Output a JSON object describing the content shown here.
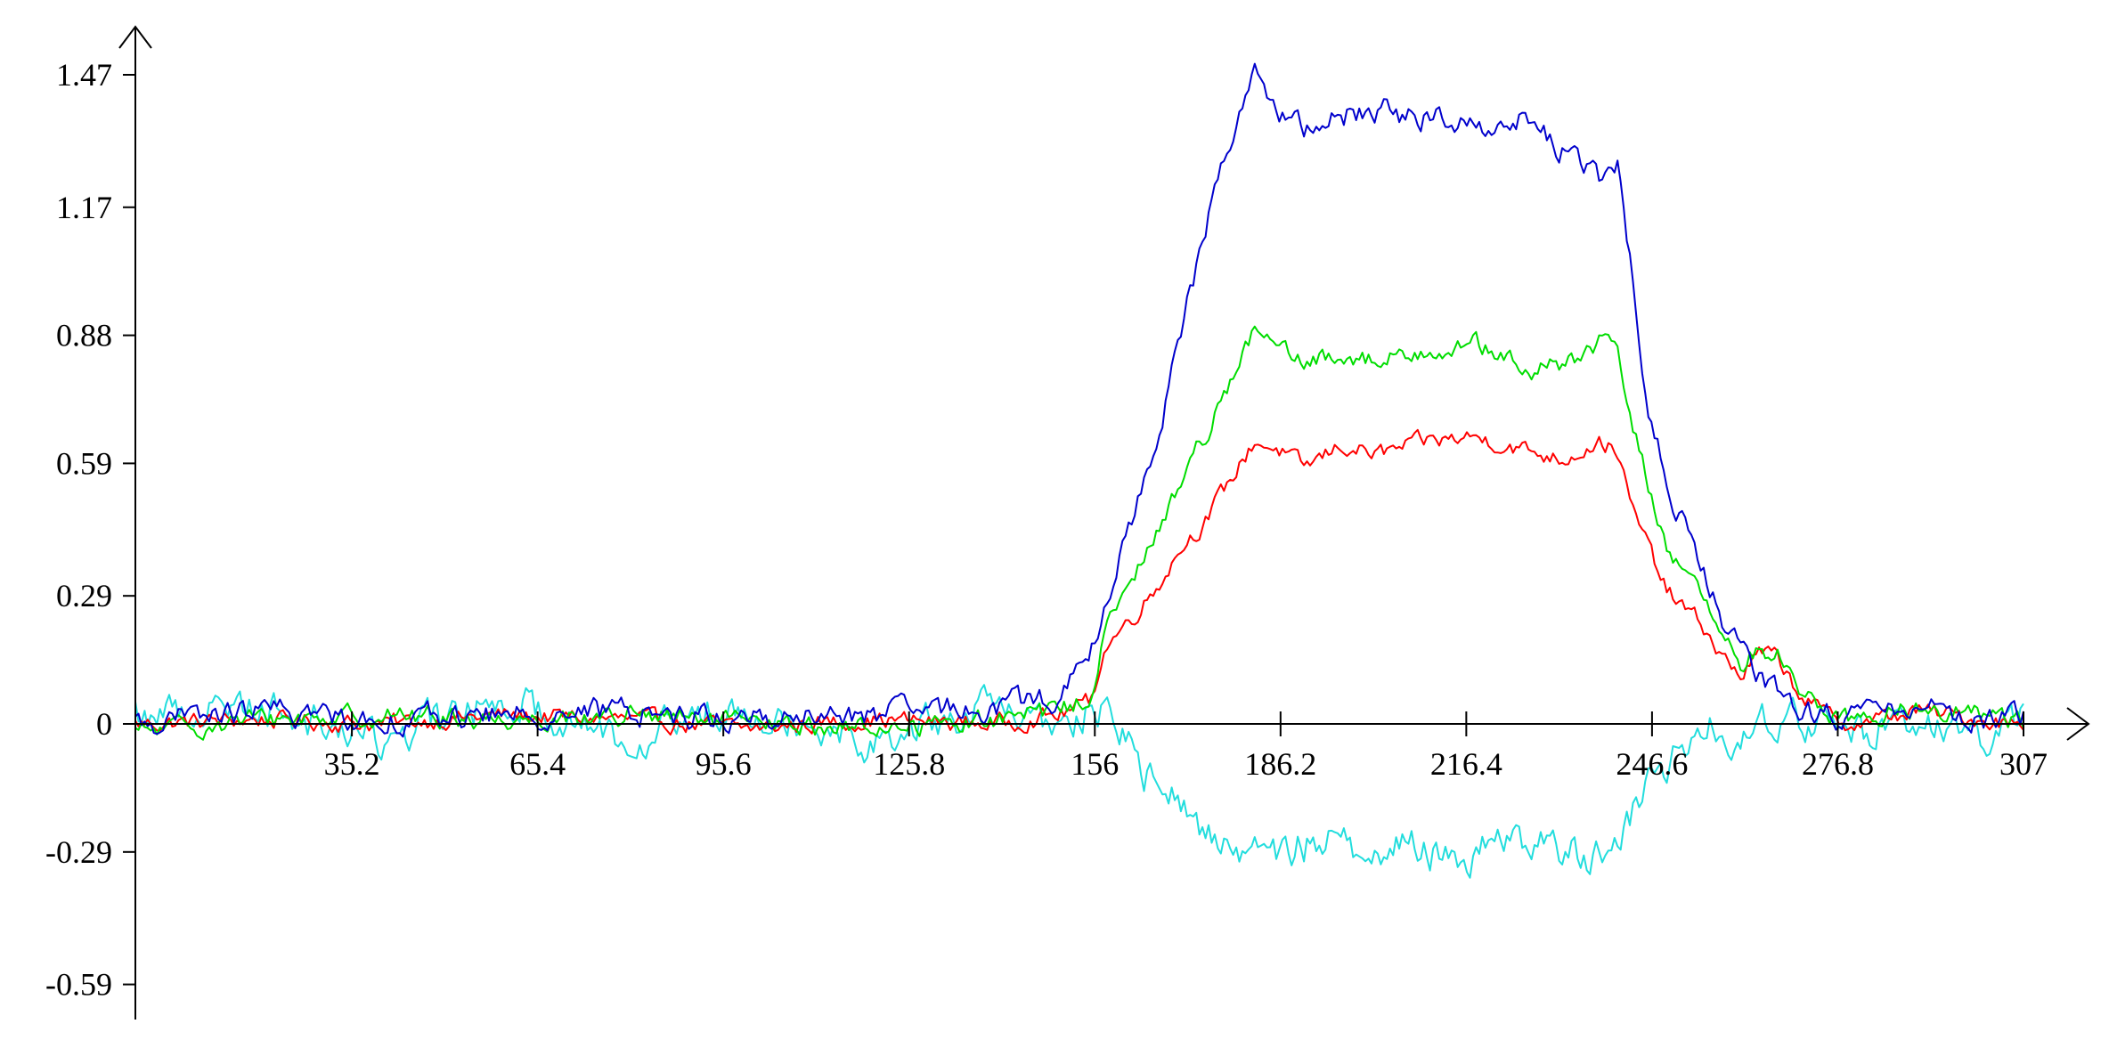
{
  "chart_data": {
    "type": "line",
    "title": "",
    "xlabel": "",
    "ylabel": "",
    "xlim": [
      0,
      307
    ],
    "ylim": [
      -0.64,
      1.52
    ],
    "x_ticks": [
      35.2,
      65.4,
      95.6,
      125.8,
      156,
      186.2,
      216.4,
      246.6,
      276.8,
      307
    ],
    "x_tick_labels": [
      "35.2",
      "65.4",
      "95.6",
      "125.8",
      "156",
      "186.2",
      "216.4",
      "246.6",
      "276.8",
      "307"
    ],
    "y_ticks": [
      1.47,
      1.17,
      0.88,
      0.59,
      0.29,
      0,
      -0.29,
      -0.59
    ],
    "y_tick_labels": [
      "1.47",
      "1.17",
      "0.88",
      "0.59",
      "0.29",
      "0",
      "-0.29",
      "-0.59"
    ],
    "grid": false,
    "legend": "none",
    "series": [
      {
        "color": "#ff0000",
        "x": [
          0,
          20,
          40,
          60,
          80,
          100,
          120,
          140,
          150,
          155,
          158,
          162,
          166,
          170,
          174,
          178,
          182,
          186,
          190,
          196,
          202,
          210,
          218,
          226,
          232,
          238,
          241,
          243,
          246,
          249,
          252,
          255,
          258,
          261,
          264,
          267,
          270,
          273,
          276,
          280,
          290,
          300,
          307
        ],
        "y": [
          0,
          0.01,
          0,
          0.02,
          0.01,
          -0.01,
          0.01,
          0,
          0.02,
          0.05,
          0.18,
          0.24,
          0.31,
          0.4,
          0.46,
          0.55,
          0.64,
          0.62,
          0.58,
          0.63,
          0.61,
          0.64,
          0.65,
          0.62,
          0.6,
          0.64,
          0.62,
          0.5,
          0.4,
          0.3,
          0.26,
          0.22,
          0.15,
          0.11,
          0.16,
          0.15,
          0.08,
          0.04,
          0.01,
          0,
          0.03,
          0.01,
          0
        ]
      },
      {
        "color": "#00dd00",
        "x": [
          0,
          20,
          40,
          60,
          80,
          100,
          120,
          140,
          150,
          155,
          158,
          162,
          166,
          170,
          174,
          178,
          182,
          186,
          190,
          196,
          202,
          210,
          218,
          226,
          232,
          238,
          241,
          243,
          246,
          249,
          252,
          255,
          258,
          261,
          264,
          267,
          270,
          273,
          276,
          280,
          290,
          300,
          307
        ],
        "y": [
          -0.02,
          0.01,
          0.02,
          0.01,
          0.02,
          0,
          -0.01,
          0.01,
          0.03,
          0.06,
          0.22,
          0.32,
          0.43,
          0.55,
          0.66,
          0.78,
          0.89,
          0.85,
          0.81,
          0.84,
          0.82,
          0.85,
          0.86,
          0.8,
          0.81,
          0.86,
          0.85,
          0.7,
          0.54,
          0.4,
          0.35,
          0.28,
          0.18,
          0.14,
          0.17,
          0.16,
          0.09,
          0.05,
          0.02,
          0.01,
          0.04,
          0.02,
          0.01
        ]
      },
      {
        "color": "#0000cc",
        "x": [
          0,
          20,
          40,
          60,
          80,
          100,
          120,
          140,
          150,
          155,
          158,
          162,
          166,
          170,
          174,
          178,
          182,
          186,
          190,
          196,
          202,
          210,
          218,
          226,
          232,
          238,
          241,
          243,
          246,
          249,
          252,
          255,
          258,
          261,
          264,
          267,
          270,
          273,
          276,
          280,
          290,
          300,
          307
        ],
        "y": [
          0,
          0.03,
          0.01,
          0.02,
          0.03,
          0.01,
          0.02,
          0.04,
          0.06,
          0.14,
          0.28,
          0.46,
          0.65,
          0.88,
          1.12,
          1.33,
          1.48,
          1.38,
          1.34,
          1.38,
          1.39,
          1.37,
          1.36,
          1.37,
          1.3,
          1.23,
          1.27,
          1.05,
          0.7,
          0.56,
          0.44,
          0.34,
          0.24,
          0.16,
          0.1,
          0.07,
          0.04,
          0.03,
          0.02,
          0.01,
          0.05,
          0.01,
          0.02
        ]
      },
      {
        "color": "#22dddd",
        "x": [
          0,
          20,
          40,
          60,
          80,
          100,
          120,
          140,
          150,
          155,
          158,
          160,
          162,
          164,
          168,
          172,
          176,
          180,
          186,
          192,
          198,
          206,
          214,
          222,
          230,
          236,
          240,
          243,
          246,
          249,
          252,
          255,
          258,
          261,
          264,
          267,
          270,
          273,
          276,
          280,
          290,
          300,
          307
        ],
        "y": [
          0.02,
          0.05,
          -0.04,
          0.06,
          -0.03,
          0.05,
          -0.04,
          0.04,
          -0.02,
          0.03,
          0.02,
          -0.01,
          -0.06,
          -0.11,
          -0.16,
          -0.22,
          -0.26,
          -0.28,
          -0.3,
          -0.26,
          -0.28,
          -0.27,
          -0.31,
          -0.26,
          -0.28,
          -0.3,
          -0.27,
          -0.22,
          -0.14,
          -0.09,
          -0.05,
          -0.02,
          0.01,
          -0.06,
          0.02,
          -0.04,
          0.04,
          -0.02,
          0.01,
          -0.03,
          0.02,
          -0.04,
          0.01
        ]
      }
    ]
  }
}
